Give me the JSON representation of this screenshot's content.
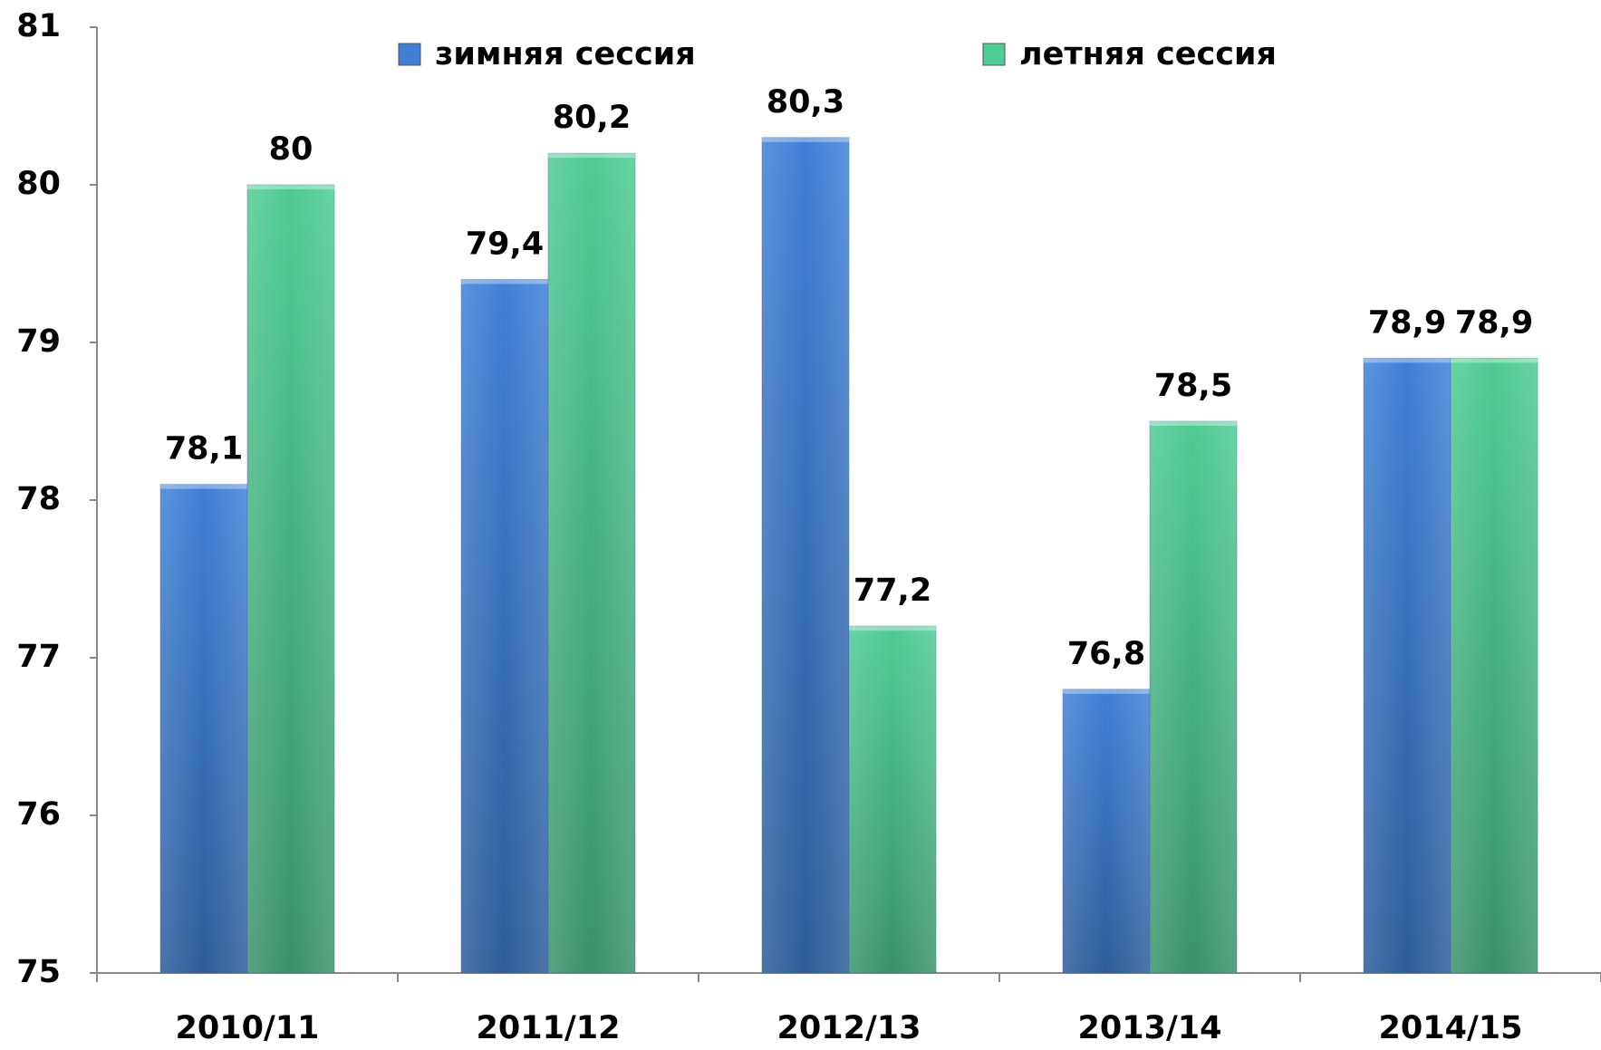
{
  "chart_data": {
    "type": "bar",
    "categories": [
      "2010/11",
      "2011/12",
      "2012/13",
      "2013/14",
      "2014/15"
    ],
    "series": [
      {
        "name": "зимняя сессия",
        "color": "#3f80d6",
        "values": [
          78.1,
          79.4,
          80.3,
          76.8,
          78.9
        ],
        "value_labels": [
          "78,1",
          "79,4",
          "80,3",
          "76,8",
          "78,9"
        ]
      },
      {
        "name": "летняя сессия",
        "color": "#4fcb95",
        "values": [
          80,
          80.2,
          77.2,
          78.5,
          78.9
        ],
        "value_labels": [
          "80",
          "80,2",
          "77,2",
          "78,5",
          "78,9"
        ]
      }
    ],
    "ylim": [
      75,
      81
    ],
    "yticks": [
      75,
      76,
      77,
      78,
      79,
      80,
      81
    ],
    "grid": false,
    "legend": "top"
  }
}
